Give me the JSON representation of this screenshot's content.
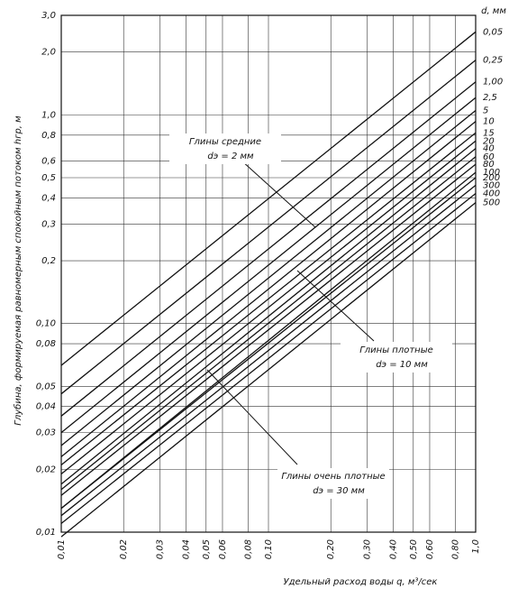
{
  "chart_data": {
    "type": "line",
    "y_label": "Глубина, формируемая равномерным спокойным потоком hгр, м",
    "x_label": "Удельный расход воды q, м³/сек",
    "legend_title": "d, мм",
    "log_x": true,
    "log_y": true,
    "grid": true,
    "color": "#111111",
    "xlim": [
      0.01,
      1.0
    ],
    "ylim": [
      0.01,
      3.0
    ],
    "xticks": [
      {
        "value": 0.01,
        "label": "0,01"
      },
      {
        "value": 0.02,
        "label": "0,02"
      },
      {
        "value": 0.03,
        "label": "0,03"
      },
      {
        "value": 0.04,
        "label": "0,04"
      },
      {
        "value": 0.05,
        "label": "0,05"
      },
      {
        "value": 0.06,
        "label": "0,06"
      },
      {
        "value": 0.08,
        "label": "0,08"
      },
      {
        "value": 0.1,
        "label": "0,10"
      },
      {
        "value": 0.2,
        "label": "0,20"
      },
      {
        "value": 0.3,
        "label": "0,30"
      },
      {
        "value": 0.4,
        "label": "0,40"
      },
      {
        "value": 0.5,
        "label": "0,50"
      },
      {
        "value": 0.6,
        "label": "0,60"
      },
      {
        "value": 0.8,
        "label": "0,80"
      },
      {
        "value": 1.0,
        "label": "1,0"
      }
    ],
    "yticks": [
      {
        "value": 0.01,
        "label": "0,01"
      },
      {
        "value": 0.02,
        "label": "0,02"
      },
      {
        "value": 0.03,
        "label": "0,03"
      },
      {
        "value": 0.04,
        "label": "0,04"
      },
      {
        "value": 0.05,
        "label": "0,05"
      },
      {
        "value": 0.08,
        "label": "0,08"
      },
      {
        "value": 0.1,
        "label": "0,10"
      },
      {
        "value": 0.2,
        "label": "0,2"
      },
      {
        "value": 0.3,
        "label": "0,3"
      },
      {
        "value": 0.4,
        "label": "0,4"
      },
      {
        "value": 0.5,
        "label": "0,5"
      },
      {
        "value": 0.6,
        "label": "0,6"
      },
      {
        "value": 0.8,
        "label": "0,8"
      },
      {
        "value": 1.0,
        "label": "1,0"
      },
      {
        "value": 2.0,
        "label": "2,0"
      },
      {
        "value": 3.0,
        "label": "3,0"
      }
    ],
    "x": [
      0.01,
      1.0
    ],
    "series": [
      {
        "name": "0,05",
        "values": [
          0.063,
          2.5
        ]
      },
      {
        "name": "0,25",
        "values": [
          0.046,
          1.83
        ]
      },
      {
        "name": "1,00",
        "values": [
          0.036,
          1.44
        ]
      },
      {
        "name": "2,5",
        "values": [
          0.03,
          1.21
        ]
      },
      {
        "name": "5",
        "values": [
          0.026,
          1.05
        ]
      },
      {
        "name": "10",
        "values": [
          0.023,
          0.93
        ]
      },
      {
        "name": "15",
        "values": [
          0.021,
          0.82
        ]
      },
      {
        "name": "20",
        "values": [
          0.019,
          0.75
        ]
      },
      {
        "name": "40",
        "values": [
          0.017,
          0.69
        ]
      },
      {
        "name": "60",
        "values": [
          0.016,
          0.63
        ]
      },
      {
        "name": "80",
        "values": [
          0.015,
          0.58
        ]
      },
      {
        "name": "100",
        "values": [
          0.013,
          0.53
        ]
      },
      {
        "name": "200",
        "values": [
          0.013,
          0.5
        ]
      },
      {
        "name": "300",
        "values": [
          0.012,
          0.46
        ]
      },
      {
        "name": "400",
        "values": [
          0.011,
          0.42
        ]
      },
      {
        "name": "500",
        "values": [
          0.0095,
          0.38
        ]
      }
    ],
    "annotations": [
      {
        "title": "Глины средние",
        "text": "dэ = 2 мм"
      },
      {
        "title": "Глины плотные",
        "text": "dэ = 10 мм"
      },
      {
        "title": "Глины очень плотные",
        "text": "dэ = 30 мм"
      }
    ]
  }
}
